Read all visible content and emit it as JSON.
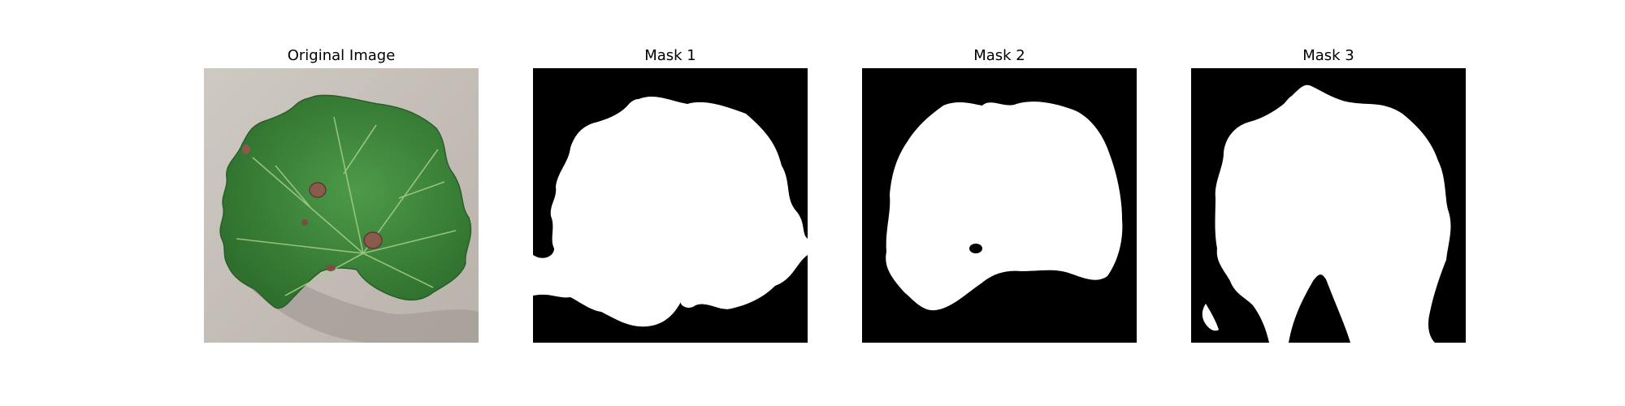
{
  "figure": {
    "panels": [
      {
        "title": "Original Image",
        "kind": "photo",
        "subject": "grape-leaf"
      },
      {
        "title": "Mask 1",
        "kind": "mask"
      },
      {
        "title": "Mask 2",
        "kind": "mask"
      },
      {
        "title": "Mask 3",
        "kind": "mask"
      }
    ],
    "colors": {
      "background": "#ffffff",
      "mask_background": "#000000",
      "mask_foreground": "#ffffff",
      "leaf": "#3f8a3c",
      "surface": "#c4beb8"
    }
  }
}
